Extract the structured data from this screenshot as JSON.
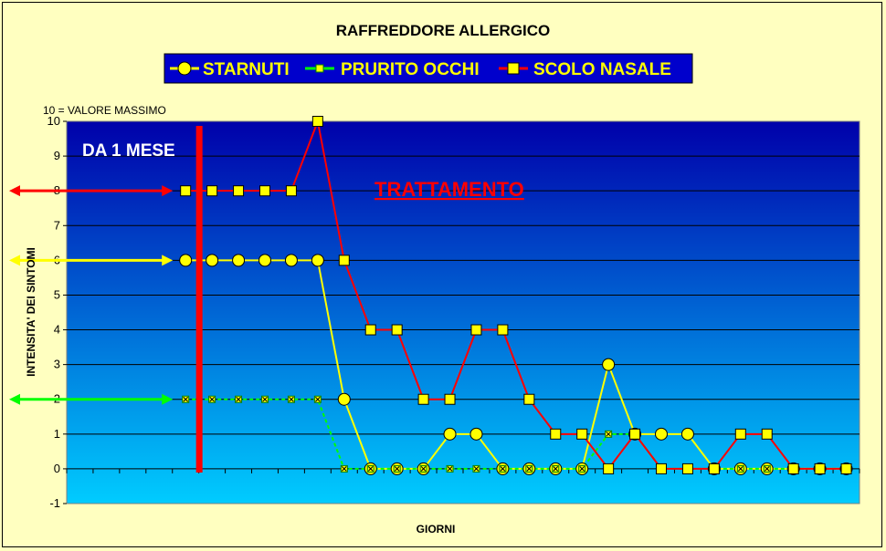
{
  "chart_data": {
    "type": "line",
    "title": "RAFFREDDORE ALLERGICO",
    "xlabel": "GIORNI",
    "ylabel": "INTENSITA' DEI SINTOMI",
    "ylim": [
      -1,
      10
    ],
    "yticks": [
      "10",
      "9",
      "8",
      "7",
      "6",
      "5",
      "4",
      "3",
      "2",
      "1",
      "0",
      "-1"
    ],
    "y_note": "10 = VALORE MASSIMO",
    "annotations": {
      "period": "DA 1 MESE",
      "treatment": "TRATTAMENTO"
    },
    "x_days": 30,
    "treatment_x": 5.5,
    "series": [
      {
        "name": "STARNUTI",
        "color": "#ffff00",
        "marker": "circle",
        "baseline": 6,
        "x": [
          5,
          6,
          7,
          8,
          9,
          10,
          11,
          12,
          13,
          14,
          15,
          16,
          17,
          18,
          19,
          20,
          21,
          22,
          23,
          24,
          25,
          26,
          27,
          28,
          29,
          30
        ],
        "values": [
          6,
          6,
          6,
          6,
          6,
          6,
          2,
          0,
          0,
          0,
          1,
          1,
          0,
          0,
          0,
          0,
          3,
          1,
          1,
          1,
          0,
          0,
          0,
          0,
          0,
          0
        ]
      },
      {
        "name": "PRURITO OCCHI",
        "color": "#00ff00",
        "marker": "x-square",
        "baseline": 2,
        "x": [
          5,
          6,
          7,
          8,
          9,
          10,
          11,
          12,
          13,
          14,
          15,
          16,
          17,
          18,
          19,
          20,
          21,
          22,
          23,
          24,
          25,
          26,
          27,
          28,
          29,
          30
        ],
        "values": [
          2,
          2,
          2,
          2,
          2,
          2,
          0,
          0,
          0,
          0,
          0,
          0,
          0,
          0,
          0,
          0,
          1,
          1,
          0,
          0,
          0,
          0,
          0,
          0,
          0,
          0
        ]
      },
      {
        "name": "SCOLO NASALE",
        "color": "#ff0000",
        "marker": "square",
        "baseline": 8,
        "x": [
          5,
          6,
          7,
          8,
          9,
          10,
          11,
          12,
          13,
          14,
          15,
          16,
          17,
          18,
          19,
          20,
          21,
          22,
          23,
          24,
          25,
          26,
          27,
          28,
          29,
          30
        ],
        "values": [
          8,
          8,
          8,
          8,
          8,
          10,
          6,
          4,
          4,
          2,
          2,
          4,
          4,
          2,
          1,
          1,
          0,
          1,
          0,
          0,
          0,
          1,
          1,
          0,
          0,
          0
        ]
      }
    ],
    "legend": "top-center"
  },
  "colors": {
    "background": "#ffffc0",
    "legend_bg": "#0000cc",
    "plot_top": "#0000aa",
    "plot_bottom": "#00ccff"
  }
}
